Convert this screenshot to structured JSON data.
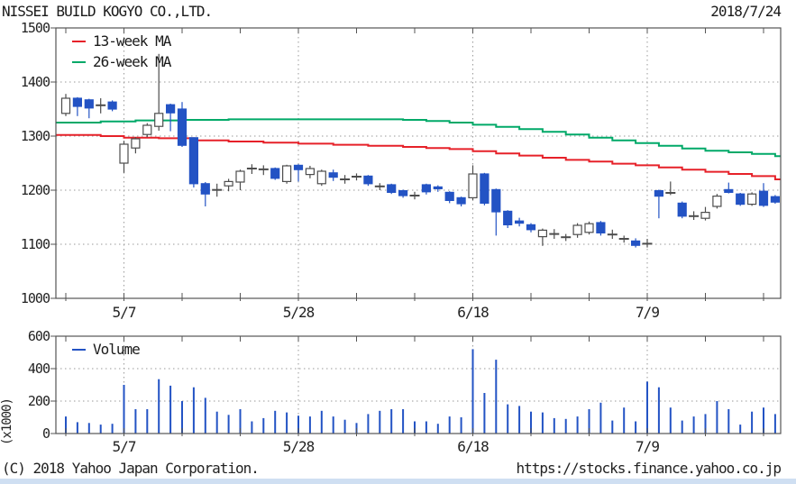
{
  "colors": {
    "up_candle": "#ffffff",
    "up_border": "#4d4d4d",
    "down_candle": "#2353c4",
    "doji": "#4d4d4d",
    "ma13": "#e62129",
    "ma26": "#00a968",
    "volume_bar": "#2353c4",
    "grid": "#9a9a9a",
    "axis": "#555555"
  },
  "header": {
    "title": "NISSEI BUILD KOGYO CO.,LTD.",
    "date": "2018/7/24"
  },
  "footer": {
    "left": "(C) 2018 Yahoo Japan Corporation.",
    "right": "https://stocks.finance.yahoo.co.jp"
  },
  "chart_data": {
    "type": "candlestick+volume",
    "title": "NISSEI BUILD KOGYO CO.,LTD.",
    "legend": [
      {
        "label": "13-week MA",
        "color": "#e62129"
      },
      {
        "label": "26-week MA",
        "color": "#00a968"
      }
    ],
    "volume_legend": {
      "label": "Volume",
      "color": "#2353c4"
    },
    "price_axis": {
      "min": 1000,
      "max": 1500,
      "ticks": [
        1500,
        1400,
        1300,
        1200,
        1100,
        1000
      ]
    },
    "volume_axis": {
      "min": 0,
      "max": 600,
      "ticks": [
        600,
        400,
        200,
        0
      ],
      "unit_label": "(x1000)"
    },
    "x_ticks": [
      {
        "label": "5/7",
        "index": 5
      },
      {
        "label": "5/28",
        "index": 20
      },
      {
        "label": "6/18",
        "index": 35
      },
      {
        "label": "7/9",
        "index": 50
      }
    ],
    "minor_tick_every": 5,
    "candles": [
      [
        "w",
        1342,
        1370,
        1378,
        1337
      ],
      [
        "b",
        1370,
        1355,
        1372,
        1337
      ],
      [
        "b",
        1367,
        1352,
        1369,
        1333
      ],
      [
        "g",
        1356,
        1358,
        1370,
        1342
      ],
      [
        "b",
        1363,
        1350,
        1366,
        1346
      ],
      [
        "w",
        1250,
        1285,
        1291,
        1232
      ],
      [
        "w",
        1278,
        1295,
        1298,
        1268
      ],
      [
        "w",
        1303,
        1320,
        1324,
        1298
      ],
      [
        "w",
        1318,
        1342,
        1452,
        1310
      ],
      [
        "b",
        1358,
        1343,
        1360,
        1309
      ],
      [
        "b",
        1350,
        1283,
        1363,
        1280
      ],
      [
        "b",
        1297,
        1212,
        1297,
        1205
      ],
      [
        "b",
        1212,
        1193,
        1215,
        1170
      ],
      [
        "g",
        1199,
        1202,
        1212,
        1188
      ],
      [
        "w",
        1208,
        1216,
        1221,
        1198
      ],
      [
        "w",
        1215,
        1235,
        1238,
        1200
      ],
      [
        "g",
        1239,
        1241,
        1248,
        1230
      ],
      [
        "g",
        1240,
        1237,
        1246,
        1228
      ],
      [
        "b",
        1240,
        1222,
        1242,
        1219
      ],
      [
        "w",
        1216,
        1245,
        1247,
        1212
      ],
      [
        "b",
        1246,
        1238,
        1248,
        1216
      ],
      [
        "w",
        1229,
        1240,
        1245,
        1222
      ],
      [
        "w",
        1212,
        1235,
        1238,
        1208
      ],
      [
        "b",
        1232,
        1224,
        1238,
        1217
      ],
      [
        "g",
        1221,
        1219,
        1228,
        1212
      ],
      [
        "g",
        1224,
        1226,
        1231,
        1218
      ],
      [
        "b",
        1226,
        1212,
        1228,
        1208
      ],
      [
        "g",
        1206,
        1208,
        1213,
        1200
      ],
      [
        "b",
        1210,
        1196,
        1212,
        1193
      ],
      [
        "b",
        1199,
        1190,
        1201,
        1186
      ],
      [
        "g",
        1189,
        1191,
        1197,
        1183
      ],
      [
        "b",
        1210,
        1197,
        1212,
        1192
      ],
      [
        "b",
        1206,
        1203,
        1209,
        1197
      ],
      [
        "b",
        1196,
        1181,
        1198,
        1176
      ],
      [
        "b",
        1186,
        1175,
        1188,
        1170
      ],
      [
        "w",
        1186,
        1230,
        1246,
        1181
      ],
      [
        "b",
        1230,
        1176,
        1232,
        1172
      ],
      [
        "b",
        1201,
        1160,
        1203,
        1116
      ],
      [
        "b",
        1161,
        1136,
        1163,
        1130
      ],
      [
        "b",
        1143,
        1139,
        1149,
        1133
      ],
      [
        "b",
        1136,
        1127,
        1139,
        1122
      ],
      [
        "w",
        1114,
        1126,
        1129,
        1097
      ],
      [
        "g",
        1118,
        1120,
        1128,
        1110
      ],
      [
        "g",
        1112,
        1114,
        1119,
        1106
      ],
      [
        "w",
        1118,
        1135,
        1139,
        1112
      ],
      [
        "w",
        1122,
        1138,
        1142,
        1118
      ],
      [
        "b",
        1140,
        1121,
        1143,
        1116
      ],
      [
        "g",
        1117,
        1119,
        1127,
        1110
      ],
      [
        "g",
        1109,
        1111,
        1116,
        1103
      ],
      [
        "b",
        1106,
        1098,
        1111,
        1094
      ],
      [
        "g",
        1100,
        1102,
        1110,
        1094
      ],
      [
        "b",
        1199,
        1189,
        1201,
        1148
      ],
      [
        "g",
        1194,
        1196,
        1216,
        1191
      ],
      [
        "b",
        1176,
        1152,
        1179,
        1148
      ],
      [
        "g",
        1151,
        1153,
        1161,
        1145
      ],
      [
        "w",
        1148,
        1159,
        1169,
        1144
      ],
      [
        "w",
        1170,
        1189,
        1193,
        1166
      ],
      [
        "b",
        1201,
        1196,
        1214,
        1194
      ],
      [
        "b",
        1193,
        1174,
        1195,
        1171
      ],
      [
        "w",
        1174,
        1193,
        1196,
        1171
      ],
      [
        "b",
        1198,
        1172,
        1213,
        1169
      ],
      [
        "b",
        1188,
        1178,
        1191,
        1175
      ]
    ],
    "candle_format": [
      "type(w=up,b=down,g=doji)",
      "open",
      "close",
      "high",
      "low"
    ],
    "volumes_x1000": [
      105,
      70,
      65,
      55,
      60,
      300,
      150,
      150,
      335,
      295,
      200,
      285,
      220,
      135,
      115,
      150,
      75,
      95,
      140,
      130,
      110,
      105,
      140,
      105,
      85,
      65,
      120,
      140,
      150,
      150,
      75,
      75,
      60,
      105,
      100,
      520,
      250,
      455,
      180,
      170,
      135,
      130,
      95,
      90,
      105,
      150,
      190,
      80,
      160,
      75,
      320,
      285,
      160,
      80,
      105,
      120,
      200,
      150,
      55,
      135,
      160,
      120
    ],
    "ma13_points": [
      [
        0,
        1302
      ],
      [
        3,
        1300
      ],
      [
        5,
        1297
      ],
      [
        8,
        1296
      ],
      [
        11,
        1292
      ],
      [
        14,
        1290
      ],
      [
        17,
        1288
      ],
      [
        20,
        1286
      ],
      [
        23,
        1284
      ],
      [
        26,
        1282
      ],
      [
        29,
        1280
      ],
      [
        31,
        1278
      ],
      [
        33,
        1276
      ],
      [
        35,
        1272
      ],
      [
        37,
        1268
      ],
      [
        39,
        1264
      ],
      [
        41,
        1260
      ],
      [
        43,
        1256
      ],
      [
        45,
        1253
      ],
      [
        47,
        1249
      ],
      [
        49,
        1246
      ],
      [
        51,
        1242
      ],
      [
        53,
        1238
      ],
      [
        55,
        1234
      ],
      [
        57,
        1230
      ],
      [
        59,
        1226
      ],
      [
        61,
        1220
      ]
    ],
    "ma26_points": [
      [
        0,
        1325
      ],
      [
        3,
        1327
      ],
      [
        6,
        1329
      ],
      [
        10,
        1330
      ],
      [
        14,
        1331
      ],
      [
        18,
        1331
      ],
      [
        22,
        1331
      ],
      [
        26,
        1331
      ],
      [
        29,
        1330
      ],
      [
        31,
        1328
      ],
      [
        33,
        1325
      ],
      [
        35,
        1321
      ],
      [
        37,
        1317
      ],
      [
        39,
        1313
      ],
      [
        41,
        1308
      ],
      [
        43,
        1303
      ],
      [
        45,
        1297
      ],
      [
        47,
        1292
      ],
      [
        49,
        1287
      ],
      [
        51,
        1282
      ],
      [
        53,
        1277
      ],
      [
        55,
        1273
      ],
      [
        57,
        1270
      ],
      [
        59,
        1267
      ],
      [
        61,
        1263
      ]
    ]
  }
}
